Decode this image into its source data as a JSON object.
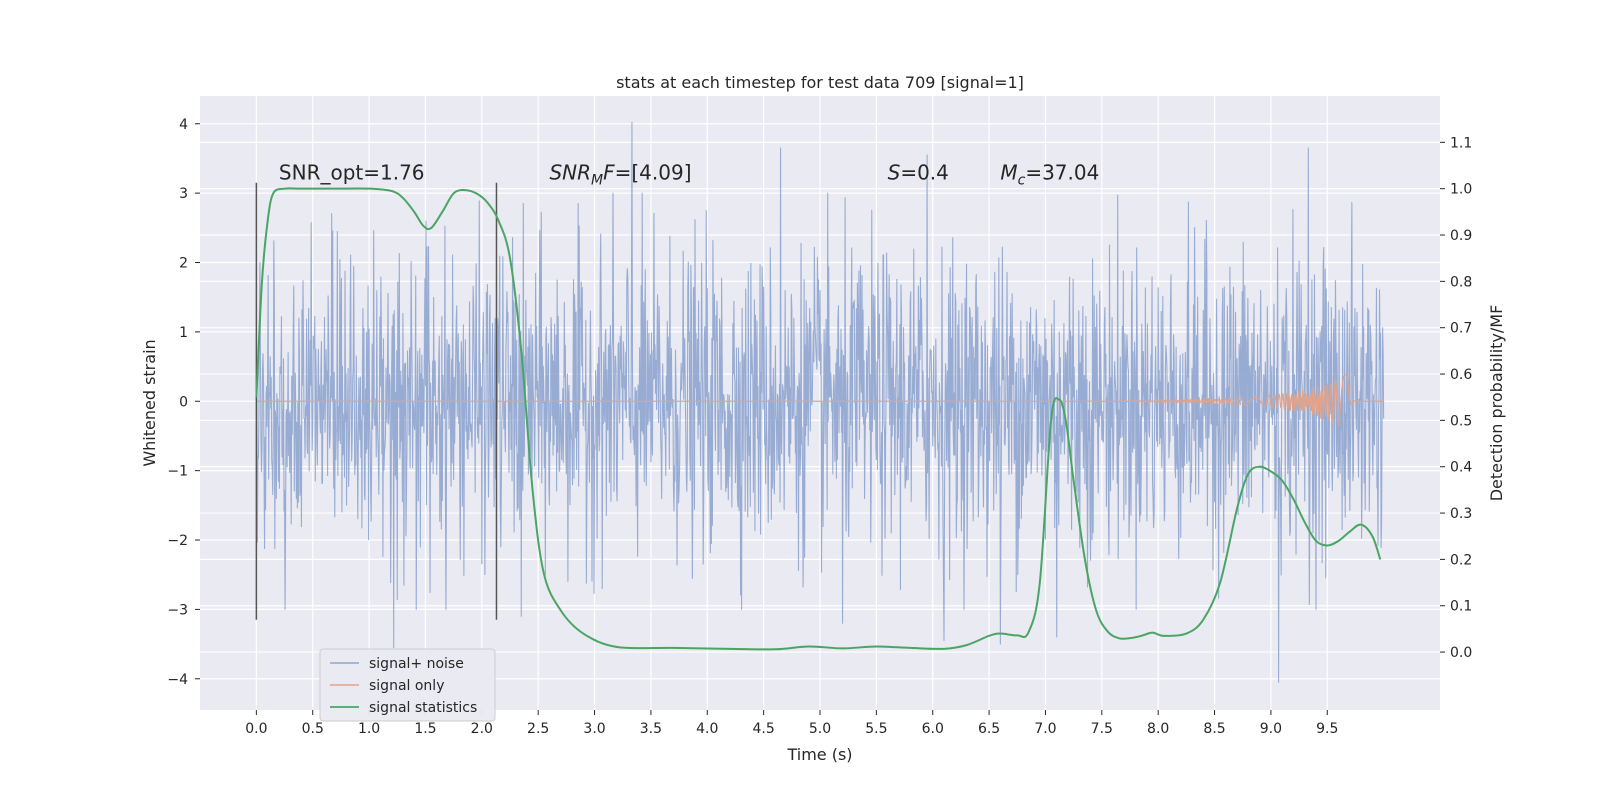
{
  "chart_data": {
    "type": "line",
    "title": "stats at each timestep for test data 709 [signal=1]",
    "xlabel": "Time (s)",
    "ylabel": "Whitened strain",
    "y2label": "Detection probability/MF",
    "xlim": [
      -0.5,
      10.5
    ],
    "ylim": [
      -4.45,
      4.4
    ],
    "y2lim": [
      -0.125,
      1.2
    ],
    "x_ticks": [
      0.0,
      0.5,
      1.0,
      1.5,
      2.0,
      2.5,
      3.0,
      3.5,
      4.0,
      4.5,
      5.0,
      5.5,
      6.0,
      6.5,
      7.0,
      7.5,
      8.0,
      8.5,
      9.0,
      9.5
    ],
    "x_tick_labels": [
      "0.0",
      "0.5",
      "1.0",
      "1.5",
      "2.0",
      "2.5",
      "3.0",
      "3.5",
      "4.0",
      "4.5",
      "5.0",
      "5.5",
      "6.0",
      "6.5",
      "7.0",
      "7.5",
      "8.0",
      "8.5",
      "9.0",
      "9.5"
    ],
    "y_ticks": [
      4,
      3,
      2,
      1,
      0,
      -1,
      -2,
      -3,
      -4
    ],
    "y_tick_labels": [
      "4",
      "3",
      "2",
      "1",
      "0",
      "−1",
      "−2",
      "−3",
      "−4"
    ],
    "y2_ticks": [
      1.1,
      1.0,
      0.9,
      0.8,
      0.7,
      0.6,
      0.5,
      0.4,
      0.3,
      0.2,
      0.1,
      0.0
    ],
    "y2_tick_labels": [
      "1.1",
      "1.0",
      "0.9",
      "0.8",
      "0.7",
      "0.6",
      "0.5",
      "0.4",
      "0.3",
      "0.2",
      "0.1",
      "0.0"
    ],
    "grid": true,
    "legend_position": "lower-left",
    "vertical_markers": [
      {
        "x": 0.0,
        "y_range": [
          -3.15,
          3.15
        ]
      },
      {
        "x": 2.13,
        "y_range": [
          -3.15,
          3.15
        ]
      }
    ],
    "annotations": [
      {
        "label": "SNR_opt=1.76",
        "x": 0.2,
        "y": 3.2
      },
      {
        "label": "SNR_MF=[4.09]",
        "x": 2.6,
        "y": 3.2
      },
      {
        "label": "S=0.4",
        "x": 5.6,
        "y": 3.2
      },
      {
        "label": "M_c=37.04",
        "x": 6.6,
        "y": 3.2
      }
    ],
    "series": [
      {
        "name": "signal+ noise",
        "axis": "left",
        "color": "#8fa5cf",
        "description_range": [
          -4.05,
          4.02
        ],
        "x_range": [
          0.0,
          10.0
        ],
        "notable_peaks": [
          {
            "x": 0.03,
            "y": 2.0
          },
          {
            "x": 3.33,
            "y": 4.02
          },
          {
            "x": 4.65,
            "y": 3.65
          },
          {
            "x": 5.95,
            "y": 3.55
          },
          {
            "x": 9.33,
            "y": 3.65
          },
          {
            "x": 1.22,
            "y": -3.55
          },
          {
            "x": 9.07,
            "y": -4.05
          },
          {
            "x": 6.1,
            "y": -3.45
          },
          {
            "x": 6.6,
            "y": -3.5
          },
          {
            "x": 7.1,
            "y": -3.4
          },
          {
            "x": 5.2,
            "y": -3.2
          },
          {
            "x": 2.35,
            "y": -3.1
          }
        ]
      },
      {
        "name": "signal only",
        "axis": "left",
        "color": "#e0a38c",
        "x_range": [
          0.0,
          10.0
        ],
        "chirp_peak": {
          "x": 9.68,
          "amplitude": 0.42
        }
      },
      {
        "name": "signal statistics",
        "axis": "right",
        "color": "#4aa564",
        "x": [
          0.0,
          0.05,
          0.1,
          0.15,
          0.25,
          0.4,
          0.7,
          1.0,
          1.2,
          1.3,
          1.4,
          1.48,
          1.55,
          1.65,
          1.75,
          1.85,
          1.95,
          2.05,
          2.15,
          2.25,
          2.35,
          2.45,
          2.55,
          2.7,
          2.9,
          3.2,
          3.7,
          4.2,
          4.6,
          4.9,
          5.2,
          5.5,
          5.8,
          6.1,
          6.3,
          6.5,
          6.6,
          6.75,
          6.85,
          6.95,
          7.05,
          7.12,
          7.18,
          7.25,
          7.35,
          7.45,
          7.55,
          7.65,
          7.75,
          7.85,
          7.95,
          8.05,
          8.25,
          8.4,
          8.55,
          8.7,
          8.8,
          8.9,
          9.0,
          9.1,
          9.2,
          9.3,
          9.4,
          9.5,
          9.6,
          9.7,
          9.8,
          9.9,
          9.97
        ],
        "values": [
          0.55,
          0.8,
          0.93,
          0.99,
          1.0,
          1.0,
          1.0,
          1.0,
          0.995,
          0.98,
          0.95,
          0.92,
          0.915,
          0.95,
          0.99,
          0.997,
          0.99,
          0.97,
          0.93,
          0.85,
          0.65,
          0.35,
          0.17,
          0.09,
          0.04,
          0.011,
          0.009,
          0.007,
          0.006,
          0.012,
          0.008,
          0.012,
          0.009,
          0.007,
          0.015,
          0.035,
          0.04,
          0.036,
          0.043,
          0.15,
          0.5,
          0.545,
          0.5,
          0.37,
          0.2,
          0.09,
          0.045,
          0.03,
          0.03,
          0.035,
          0.042,
          0.035,
          0.04,
          0.07,
          0.15,
          0.31,
          0.385,
          0.4,
          0.39,
          0.37,
          0.33,
          0.28,
          0.24,
          0.23,
          0.24,
          0.26,
          0.275,
          0.25,
          0.2
        ]
      }
    ]
  }
}
